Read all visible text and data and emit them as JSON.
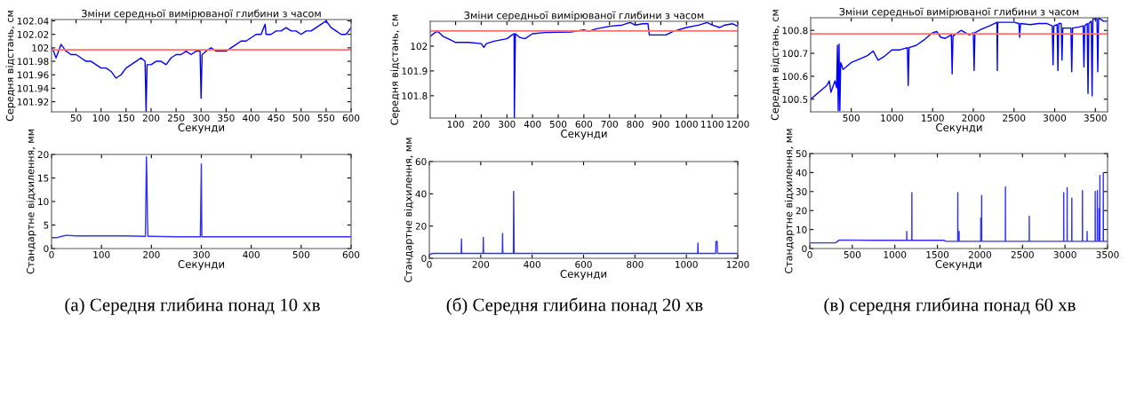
{
  "chart_data": [
    {
      "type": "line",
      "title": "Зміни середньої вимірюваної глибини з часом",
      "xlabel": "Секунди",
      "ylabel": "Середня відстань, см",
      "xlim": [
        1,
        600
      ],
      "ylim": [
        101.905,
        102.042
      ],
      "xticks": [
        50,
        100,
        150,
        200,
        250,
        300,
        350,
        400,
        450,
        500,
        550,
        600
      ],
      "yticks": [
        101.92,
        101.94,
        101.96,
        101.98,
        {
          "value": 102,
          "label": "102"
        },
        102.02,
        102.04
      ],
      "x": [
        1,
        5,
        10,
        20,
        30,
        40,
        50,
        60,
        70,
        80,
        90,
        100,
        110,
        120,
        130,
        140,
        150,
        160,
        170,
        180,
        188,
        190,
        192,
        200,
        210,
        220,
        230,
        240,
        250,
        260,
        270,
        280,
        290,
        298,
        300,
        302,
        310,
        320,
        330,
        340,
        350,
        360,
        370,
        380,
        390,
        400,
        410,
        420,
        428,
        430,
        440,
        450,
        460,
        470,
        480,
        490,
        500,
        510,
        520,
        530,
        540,
        550,
        560,
        570,
        580,
        590,
        600
      ],
      "series": [
        {
          "color": "#0000ff",
          "values": [
            102.0,
            101.995,
            101.985,
            102.005,
            101.995,
            101.99,
            101.99,
            101.985,
            101.98,
            101.98,
            101.975,
            101.97,
            101.97,
            101.965,
            101.955,
            101.96,
            101.97,
            101.975,
            101.98,
            101.985,
            101.98,
            101.905,
            101.975,
            101.975,
            101.98,
            101.98,
            101.975,
            101.985,
            101.99,
            101.99,
            101.995,
            101.99,
            101.995,
            101.995,
            101.925,
            101.99,
            101.995,
            102.0,
            101.995,
            101.995,
            101.995,
            102.0,
            102.005,
            102.01,
            102.01,
            102.015,
            102.02,
            102.02,
            102.035,
            102.02,
            102.02,
            102.025,
            102.025,
            102.03,
            102.025,
            102.025,
            102.02,
            102.025,
            102.025,
            102.03,
            102.035,
            102.04,
            102.03,
            102.025,
            102.02,
            102.02,
            102.03
          ]
        }
      ],
      "ref_lines": [
        {
          "axis": "y",
          "value": 101.997,
          "color": "#ff7070"
        }
      ]
    },
    {
      "type": "line",
      "title": "Зміни середньої вимірюваної глибини з часом",
      "xlabel": "Секунди",
      "ylabel": "Середня відстань, см",
      "xlim": [
        1,
        1200
      ],
      "ylim": [
        101.71,
        102.1
      ],
      "xticks": [
        100,
        200,
        300,
        400,
        500,
        600,
        700,
        800,
        900,
        1000,
        1100,
        1200
      ],
      "yticks": [
        101.8,
        101.9,
        {
          "value": 102,
          "label": "102"
        }
      ],
      "x": [
        1,
        20,
        30,
        50,
        80,
        100,
        150,
        200,
        210,
        220,
        250,
        300,
        320,
        328,
        329,
        331,
        333,
        350,
        370,
        400,
        450,
        500,
        550,
        600,
        620,
        650,
        700,
        750,
        780,
        800,
        830,
        850,
        855,
        870,
        900,
        920,
        950,
        1000,
        1050,
        1080,
        1100,
        1130,
        1150,
        1180,
        1200
      ],
      "series": [
        {
          "color": "#0000ff",
          "values": [
            102.04,
            102.055,
            102.06,
            102.04,
            102.025,
            102.015,
            102.015,
            102.01,
            101.995,
            102.01,
            102.02,
            102.03,
            102.045,
            102.05,
            101.71,
            101.88,
            102.05,
            102.035,
            102.03,
            102.05,
            102.055,
            102.056,
            102.057,
            102.065,
            102.06,
            102.07,
            102.08,
            102.085,
            102.095,
            102.085,
            102.09,
            102.09,
            102.045,
            102.045,
            102.045,
            102.045,
            102.06,
            102.075,
            102.085,
            102.095,
            102.085,
            102.075,
            102.085,
            102.09,
            102.08
          ]
        }
      ],
      "ref_lines": [
        {
          "axis": "y",
          "value": 102.061,
          "color": "#ff7070"
        }
      ]
    },
    {
      "type": "line",
      "title": "Зміни середньої вимірюваної глибини з часом",
      "xlabel": "Секунди",
      "ylabel": "Середня відстань, см",
      "xlim": [
        1,
        3650
      ],
      "ylim": [
        100.445,
        100.855
      ],
      "xticks": [
        500,
        1000,
        1500,
        2000,
        2500,
        3000,
        3500
      ],
      "yticks": [
        100.5,
        100.6,
        100.7,
        100.8
      ],
      "x": [
        1,
        100,
        200,
        230,
        250,
        300,
        320,
        330,
        340,
        350,
        360,
        370,
        400,
        500,
        600,
        700,
        770,
        830,
        900,
        1000,
        1100,
        1190,
        1200,
        1210,
        1300,
        1400,
        1500,
        1550,
        1600,
        1650,
        1730,
        1740,
        1750,
        1850,
        1950,
        2000,
        2010,
        2020,
        2100,
        2200,
        2290,
        2295,
        2300,
        2400,
        2500,
        2560,
        2570,
        2580,
        2700,
        2800,
        2900,
        2970,
        2980,
        2990,
        3030,
        3040,
        3050,
        3080,
        3090,
        3100,
        3200,
        3210,
        3220,
        3300,
        3350,
        3360,
        3370,
        3400,
        3410,
        3420,
        3450,
        3460,
        3470,
        3520,
        3530,
        3540,
        3600,
        3650
      ],
      "series": [
        {
          "color": "#0000ff",
          "values": [
            100.5,
            100.53,
            100.56,
            100.58,
            100.53,
            100.58,
            100.55,
            100.735,
            100.45,
            100.74,
            100.45,
            100.66,
            100.63,
            100.66,
            100.675,
            100.69,
            100.71,
            100.67,
            100.685,
            100.715,
            100.715,
            100.725,
            100.56,
            100.725,
            100.735,
            100.76,
            100.79,
            100.795,
            100.77,
            100.765,
            100.78,
            100.61,
            100.775,
            100.8,
            100.78,
            100.79,
            100.625,
            100.79,
            100.805,
            100.82,
            100.835,
            100.625,
            100.835,
            100.835,
            100.835,
            100.83,
            100.77,
            100.83,
            100.825,
            100.83,
            100.83,
            100.82,
            100.65,
            100.82,
            100.825,
            100.625,
            100.83,
            100.83,
            100.67,
            100.81,
            100.81,
            100.62,
            100.81,
            100.815,
            100.82,
            100.64,
            100.82,
            100.83,
            100.525,
            100.83,
            100.84,
            100.515,
            100.85,
            100.85,
            100.62,
            100.855,
            100.84,
            100.84
          ]
        }
      ],
      "ref_lines": [
        {
          "axis": "y",
          "value": 100.785,
          "color": "#ff7070"
        }
      ]
    },
    {
      "type": "line",
      "xlabel": "Секунди",
      "ylabel": "Стандартне відхилення, мм",
      "xlim": [
        0,
        600
      ],
      "ylim": [
        0,
        20
      ],
      "xticks": [
        0,
        100,
        200,
        300,
        400,
        500,
        600
      ],
      "yticks": [
        0,
        5,
        10,
        15,
        20
      ],
      "annotations": [
        "(а) Середня глибина понад 10 хв"
      ],
      "x": [
        0,
        10,
        20,
        30,
        50,
        100,
        150,
        185,
        188,
        189,
        190,
        191,
        192,
        193,
        200,
        250,
        298,
        299,
        300,
        301,
        400,
        500,
        600
      ],
      "series": [
        {
          "color": "#3030ff",
          "values": [
            2.3,
            2.3,
            2.6,
            2.8,
            2.7,
            2.7,
            2.7,
            2.6,
            2.6,
            11,
            19.5,
            15,
            6.5,
            2.6,
            2.6,
            2.5,
            2.5,
            10,
            18,
            2.5,
            2.5,
            2.5,
            2.5
          ]
        }
      ]
    },
    {
      "type": "line",
      "xlabel": "Секунди",
      "ylabel": "Стандартне відхилення, мм",
      "xlim": [
        0,
        1200
      ],
      "ylim": [
        0,
        60
      ],
      "xticks": [
        0,
        200,
        400,
        600,
        800,
        1000,
        1200
      ],
      "yticks": [
        0,
        20,
        40,
        60
      ],
      "annotations": [
        "(б) Середня глибина понад 20 хв"
      ],
      "x": [
        0,
        15,
        124,
        125,
        126,
        209,
        210,
        211,
        284,
        285,
        286,
        327,
        328,
        329,
        330,
        1044,
        1045,
        1046,
        1114,
        1115,
        1120,
        1121,
        1200
      ],
      "series": [
        {
          "color": "#3030ff",
          "values": [
            2.5,
            3,
            3,
            12,
            3,
            3,
            13,
            3,
            3,
            15.5,
            3,
            3,
            41.5,
            22,
            3,
            3,
            9.5,
            3,
            3,
            10.5,
            10.5,
            3,
            3
          ]
        }
      ]
    },
    {
      "type": "line",
      "xlabel": "Секунди",
      "ylabel": "Стандартне відхилення, мм",
      "xlim": [
        0,
        3500
      ],
      "ylim": [
        0,
        50
      ],
      "xticks": [
        0,
        500,
        1000,
        1500,
        2000,
        2500,
        3000,
        3500
      ],
      "yticks": [
        0,
        10,
        20,
        30,
        40,
        50
      ],
      "annotations": [
        "(в) середня глибина понад 60 хв"
      ],
      "x": [
        0,
        300,
        350,
        750,
        1139,
        1140,
        1141,
        1199,
        1200,
        1201,
        1580,
        1600,
        1739,
        1740,
        1741,
        1754,
        1755,
        1756,
        2009,
        2010,
        2011,
        2019,
        2020,
        2021,
        2299,
        2300,
        2301,
        2579,
        2580,
        2581,
        2984,
        2985,
        2986,
        3024,
        3025,
        3026,
        3079,
        3080,
        3081,
        3204,
        3205,
        3206,
        3259,
        3260,
        3261,
        3354,
        3355,
        3356,
        3379,
        3380,
        3381,
        3399,
        3400,
        3401,
        3409,
        3410,
        3411,
        3449,
        3450,
        3451,
        3500
      ],
      "series": [
        {
          "color": "#3030ff",
          "values": [
            3,
            3,
            4.5,
            4.3,
            4.3,
            9,
            4.3,
            4.3,
            29.5,
            4.3,
            4.3,
            3.8,
            3.8,
            29.5,
            3.8,
            3.8,
            9,
            3.8,
            3.8,
            16,
            3.8,
            3.8,
            28,
            3.8,
            3.8,
            32.5,
            3.8,
            3.8,
            17,
            3.8,
            3.8,
            29.5,
            3.8,
            3.8,
            32,
            3.8,
            3.8,
            26.5,
            3.8,
            3.8,
            30.5,
            3.8,
            3.8,
            9,
            3.8,
            3.8,
            30,
            3.8,
            3.8,
            30.5,
            3.8,
            3.8,
            21,
            3.8,
            3.8,
            38.5,
            3.8,
            3.8,
            40,
            3.8,
            3.8
          ]
        }
      ]
    }
  ]
}
